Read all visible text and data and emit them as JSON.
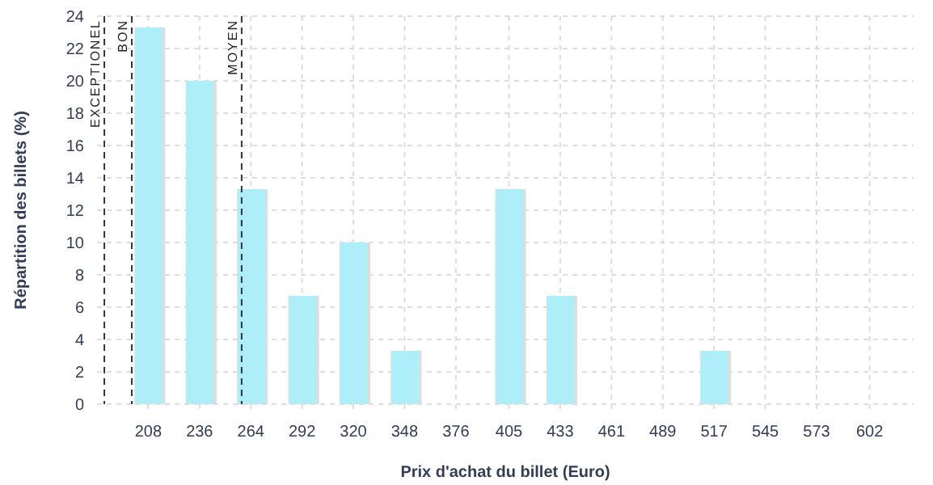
{
  "chart_data": {
    "type": "bar",
    "xlabel": "Prix d'achat du billet (Euro)",
    "ylabel": "Répartition des billets (%)",
    "x": [
      208,
      236,
      264,
      292,
      320,
      348,
      376,
      405,
      433,
      461,
      489,
      517,
      545,
      573,
      602
    ],
    "values": [
      23.3,
      20,
      13.3,
      6.7,
      10,
      3.3,
      0,
      13.3,
      6.7,
      0,
      0,
      3.3,
      0,
      0,
      0
    ],
    "color": "#aeeef8",
    "xlim": [
      180,
      626
    ],
    "xticks": [
      208,
      236,
      264,
      292,
      320,
      348,
      376,
      405,
      433,
      461,
      489,
      517,
      545,
      573,
      602
    ],
    "ylim": [
      0,
      24
    ],
    "yticks": [
      0,
      2,
      4,
      6,
      8,
      10,
      12,
      14,
      16,
      18,
      20,
      22,
      24
    ],
    "grid": true,
    "ref_lines": [
      {
        "axis": "x",
        "value": 184,
        "label": "EXCEPTIONEL",
        "line_style": "dashed",
        "color": "#333344"
      },
      {
        "axis": "x",
        "value": 199,
        "label": "BON",
        "line_style": "dashed",
        "color": "#333344"
      },
      {
        "axis": "x",
        "value": 259,
        "label": "MOYEN",
        "line_style": "dashed",
        "color": "#333344"
      }
    ]
  }
}
